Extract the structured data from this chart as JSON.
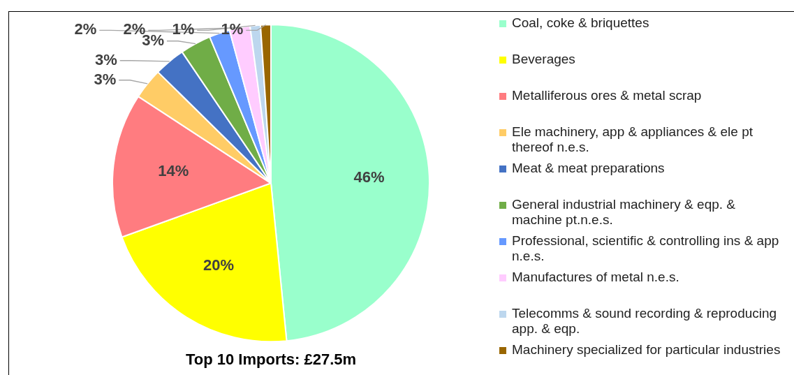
{
  "chart_data": {
    "type": "pie",
    "title": "Top 10 Imports: £27.5m",
    "categories": [
      "Coal, coke & briquettes",
      "Beverages",
      "Metalliferous ores & metal scrap",
      "Ele machinery, app & appliances & ele pt thereof n.e.s.",
      "Meat & meat preparations",
      "General industrial machinery & eqp. & machine pt.n.e.s.",
      "Professional, scientific & controlling ins & app n.e.s.",
      "Manufactures of metal n.e.s.",
      "Telecomms & sound recording & reproducing app. & eqp.",
      "Machinery specialized for particular industries"
    ],
    "values": [
      46,
      20,
      14,
      3,
      3,
      3,
      2,
      2,
      1,
      1
    ],
    "value_labels": [
      "46%",
      "20%",
      "14%",
      "3%",
      "3%",
      "3%",
      "2%",
      "2%",
      "1%",
      "1%"
    ],
    "colors": [
      "#99ffcc",
      "#ffff00",
      "#ff7c80",
      "#ffcc66",
      "#4472c4",
      "#70ad47",
      "#6699ff",
      "#ffccff",
      "#bdd7ee",
      "#996600"
    ],
    "data_labels": true,
    "legend": "right"
  }
}
